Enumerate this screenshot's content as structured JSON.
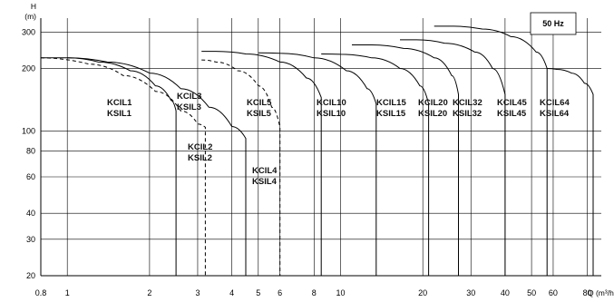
{
  "chart_data": {
    "type": "line",
    "title": "",
    "frequency_label": "50 Hz",
    "y_axis": {
      "label_top": "H",
      "label_unit": "(m)",
      "scale": "log",
      "ylim": [
        20,
        350
      ],
      "ticks": [
        20,
        30,
        40,
        60,
        80,
        100,
        200,
        300
      ],
      "tick_labels": [
        "20",
        "30",
        "40",
        "60",
        "80",
        "100",
        "200",
        "300"
      ]
    },
    "x_axis": {
      "label": "Q (m³/h)",
      "scale": "log",
      "xlim": [
        0.8,
        90
      ],
      "ticks": [
        0.8,
        1,
        2,
        3,
        4,
        5,
        6,
        8,
        10,
        20,
        30,
        40,
        50,
        60,
        80
      ],
      "tick_labels": [
        "0.8",
        "1",
        "2",
        "3",
        "4",
        "5",
        "6",
        "8",
        "10",
        "20",
        "30",
        "40",
        "50",
        "60",
        "80"
      ]
    },
    "grid": true,
    "series": [
      {
        "label": "KCIL1",
        "label2": "KSIL1",
        "style": "solid",
        "points": [
          [
            0.8,
            225
          ],
          [
            1.0,
            225
          ],
          [
            1.3,
            215
          ],
          [
            1.7,
            195
          ],
          [
            2.1,
            165
          ],
          [
            2.4,
            140
          ],
          [
            2.5,
            125
          ]
        ]
      },
      {
        "label": "KCIL2",
        "label2": "KSIL2",
        "style": "dashed",
        "points": [
          [
            0.8,
            225
          ],
          [
            1.2,
            210
          ],
          [
            1.6,
            185
          ],
          [
            2.1,
            155
          ],
          [
            2.6,
            125
          ],
          [
            3.0,
            108
          ],
          [
            3.2,
            104
          ]
        ]
      },
      {
        "label": "KCIL3",
        "label2": "KSIL3",
        "style": "solid",
        "points": [
          [
            1.0,
            225
          ],
          [
            1.4,
            215
          ],
          [
            2.0,
            190
          ],
          [
            2.6,
            160
          ],
          [
            3.3,
            130
          ],
          [
            4.0,
            105
          ],
          [
            4.5,
            92
          ]
        ]
      },
      {
        "label": "KCIL4",
        "label2": "KSIL4",
        "style": "dashed",
        "points": [
          [
            3.1,
            220
          ],
          [
            3.5,
            215
          ],
          [
            4.2,
            195
          ],
          [
            5.0,
            165
          ],
          [
            5.6,
            130
          ],
          [
            6.0,
            104
          ]
        ]
      },
      {
        "label": "KCIL5",
        "label2": "KSIL5",
        "style": "solid",
        "points": [
          [
            3.1,
            242
          ],
          [
            3.5,
            242
          ],
          [
            4.5,
            235
          ],
          [
            6.0,
            215
          ],
          [
            7.5,
            180
          ],
          [
            8.5,
            145
          ]
        ]
      },
      {
        "label": "KCIL10",
        "label2": "KSIL10",
        "style": "solid",
        "points": [
          [
            5.0,
            238
          ],
          [
            6.0,
            237
          ],
          [
            8.0,
            225
          ],
          [
            10.5,
            195
          ],
          [
            12.5,
            160
          ],
          [
            13.5,
            135
          ]
        ]
      },
      {
        "label": "KCIL15",
        "label2": "KSIL15",
        "style": "solid",
        "points": [
          [
            8.5,
            235
          ],
          [
            10.0,
            234
          ],
          [
            13.0,
            225
          ],
          [
            16.5,
            200
          ],
          [
            19.5,
            165
          ],
          [
            21.0,
            135
          ]
        ]
      },
      {
        "label": "KCIL20",
        "label2": "KSIL20",
        "style": "solid",
        "points": [
          [
            11.0,
            260
          ],
          [
            13.0,
            260
          ],
          [
            17.0,
            250
          ],
          [
            22.0,
            225
          ],
          [
            25.5,
            185
          ],
          [
            27.0,
            150
          ]
        ]
      },
      {
        "label": "KCIL32",
        "label2": "KSIL32",
        "style": "solid",
        "points": [
          [
            16.5,
            275
          ],
          [
            19.0,
            275
          ],
          [
            24.0,
            265
          ],
          [
            31.0,
            240
          ],
          [
            36.0,
            200
          ],
          [
            40.0,
            150
          ]
        ]
      },
      {
        "label": "KCIL45",
        "label2": "KSIL45",
        "style": "solid",
        "points": [
          [
            22.0,
            320
          ],
          [
            26.0,
            320
          ],
          [
            33.0,
            310
          ],
          [
            42.0,
            285
          ],
          [
            52.0,
            240
          ],
          [
            57.0,
            200
          ]
        ]
      },
      {
        "label": "KCIL64",
        "label2": "KSIL64",
        "style": "solid",
        "points": [
          [
            57.0,
            200
          ],
          [
            62.0,
            198
          ],
          [
            70.0,
            190
          ],
          [
            78.0,
            170
          ],
          [
            84.0,
            150
          ]
        ]
      }
    ]
  }
}
